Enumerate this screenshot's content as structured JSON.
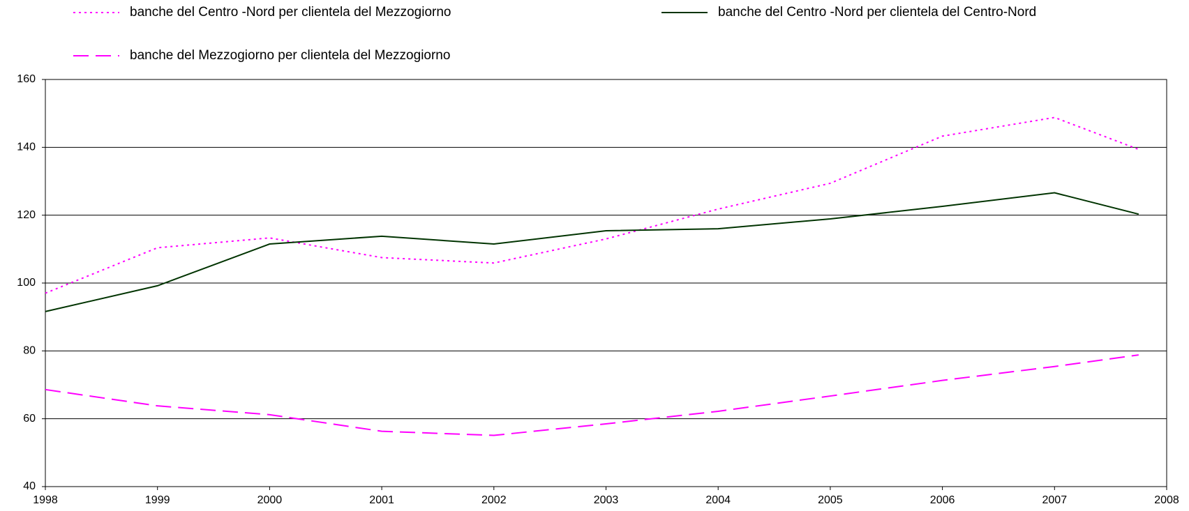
{
  "chart_data": {
    "type": "line",
    "x": [
      1998,
      1999,
      2000,
      2001,
      2002,
      2003,
      2004,
      2005,
      2006,
      2007,
      2007.75
    ],
    "series": [
      {
        "name": "banche del Centro -Nord per clientela del Mezzogiorno",
        "color": "#ff00ff",
        "line_style": "dotted",
        "values": [
          97,
          110.4,
          113.3,
          107.5,
          105.9,
          113,
          121.8,
          129.4,
          143.3,
          148.8,
          139.4
        ]
      },
      {
        "name": "banche del Centro -Nord per clientela del Centro-Nord",
        "color": "#003300",
        "line_style": "solid",
        "values": [
          91.6,
          99.2,
          111.5,
          113.8,
          111.5,
          115.4,
          116,
          118.9,
          122.6,
          126.6,
          120.3
        ]
      },
      {
        "name": "banche del Mezzogiorno per clientela del Mezzogiorno",
        "color": "#ff00ff",
        "line_style": "dashed",
        "values": [
          68.6,
          63.8,
          61.2,
          56.3,
          55.1,
          58.5,
          62.2,
          66.7,
          71.3,
          75.4,
          78.8
        ]
      }
    ],
    "xlim": [
      1998,
      2008
    ],
    "xticks": [
      1998,
      1999,
      2000,
      2001,
      2002,
      2003,
      2004,
      2005,
      2006,
      2007,
      2008
    ],
    "ylim": [
      40,
      160
    ],
    "yticks": [
      40,
      60,
      80,
      100,
      120,
      140,
      160
    ],
    "grid": true
  }
}
